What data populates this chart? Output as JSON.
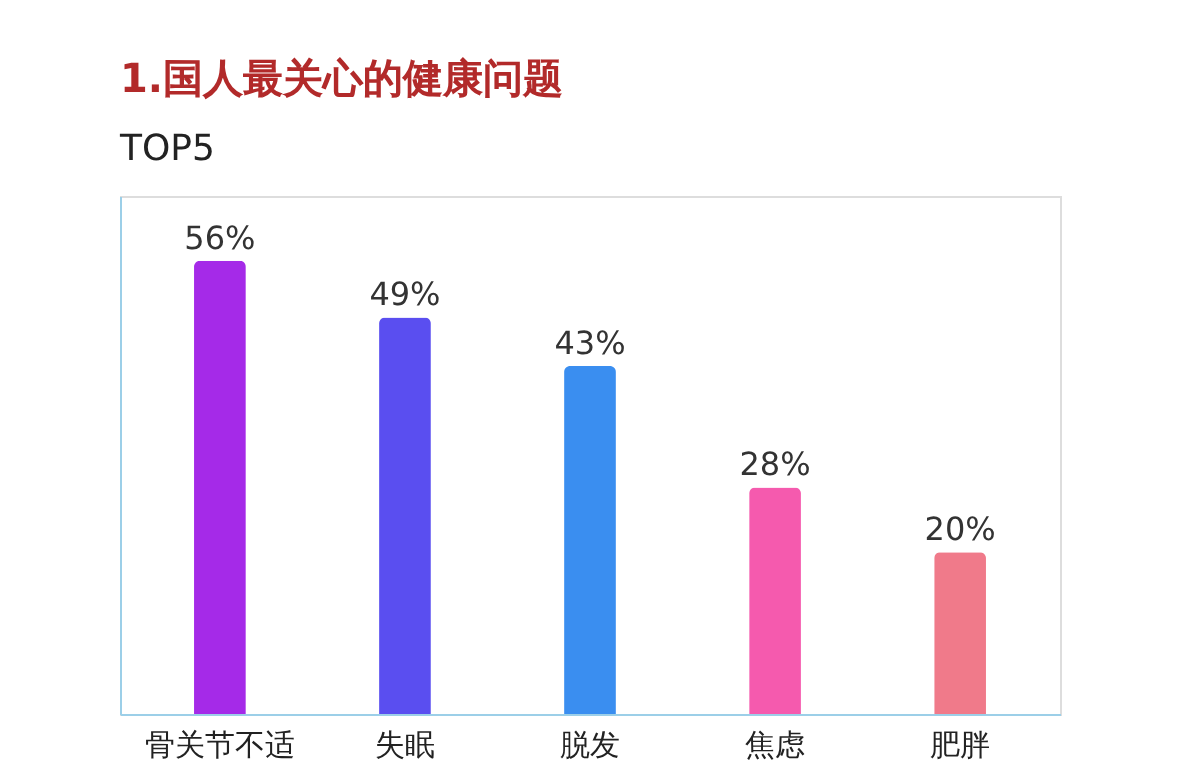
{
  "chart_data": {
    "type": "bar",
    "title": "1.国人最关心的健康问题",
    "subtitle": "TOP5",
    "categories": [
      "骨关节不适",
      "失眠",
      "脱发",
      "焦虑",
      "肥胖"
    ],
    "values": [
      56,
      49,
      43,
      28,
      20
    ],
    "value_labels": [
      "56%",
      "49%",
      "43%",
      "28%",
      "20%"
    ],
    "colors": [
      "#a52ae8",
      "#5a4ef0",
      "#3a8ef0",
      "#f55aae",
      "#f07a8a"
    ],
    "ylim": [
      0,
      64
    ],
    "tick_labels": "x",
    "grid": false
  }
}
